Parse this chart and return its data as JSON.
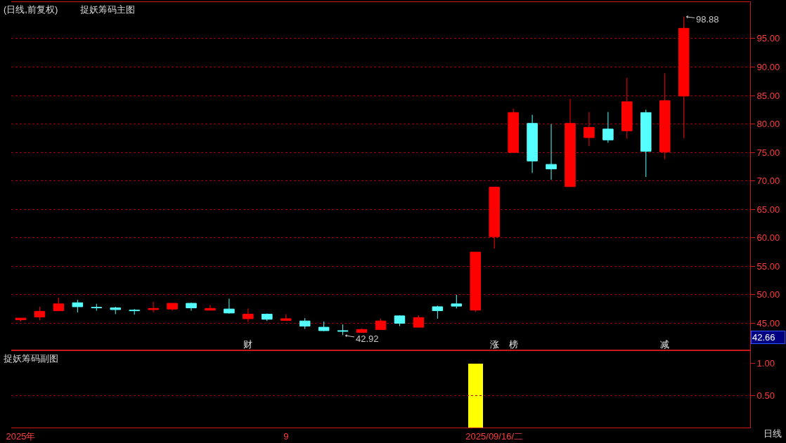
{
  "chart_data": [
    {
      "type": "candlestick",
      "title": "(日线,前复权)",
      "subtitle": "捉妖筹码主图",
      "categories": [
        null,
        null,
        null,
        null,
        null,
        null,
        null,
        null,
        null,
        null,
        null,
        null,
        "财",
        null,
        null,
        null,
        null,
        null,
        null,
        null,
        null,
        null,
        null,
        null,
        null,
        "涨",
        "榜",
        null,
        null,
        null,
        null,
        null,
        null,
        null,
        "减",
        null,
        null,
        null,
        null
      ],
      "ohlc": [
        [
          45.6,
          45.9,
          45.3,
          45.9
        ],
        [
          46.1,
          47.9,
          45.5,
          47.1
        ],
        [
          47.2,
          49.5,
          47.1,
          48.4
        ],
        [
          48.6,
          49.1,
          46.9,
          47.9
        ],
        [
          47.8,
          48.4,
          47.2,
          47.7
        ],
        [
          47.7,
          47.9,
          46.6,
          47.4
        ],
        [
          47.3,
          47.5,
          46.5,
          47.2
        ],
        [
          47.4,
          48.8,
          46.9,
          47.6
        ],
        [
          47.5,
          48.5,
          47.2,
          48.5
        ],
        [
          48.5,
          48.6,
          47.2,
          47.7
        ],
        [
          47.3,
          48.2,
          47.3,
          47.6
        ],
        [
          47.5,
          49.3,
          46.7,
          46.8
        ],
        [
          45.8,
          47.6,
          45.2,
          46.6
        ],
        [
          46.6,
          46.7,
          45.4,
          45.7
        ],
        [
          45.5,
          46.6,
          45.5,
          45.8
        ],
        [
          45.4,
          45.9,
          44.0,
          44.5
        ],
        [
          44.3,
          45.3,
          43.6,
          43.7
        ],
        [
          43.7,
          44.8,
          42.92,
          43.6
        ],
        [
          43.4,
          44.1,
          43.3,
          43.9
        ],
        [
          43.9,
          45.8,
          43.9,
          45.4
        ],
        [
          46.3,
          46.4,
          44.5,
          45.0
        ],
        [
          44.3,
          46.4,
          44.3,
          46.0
        ],
        [
          47.9,
          48.1,
          45.8,
          47.2
        ],
        [
          48.4,
          50.0,
          47.6,
          48.0
        ],
        [
          47.3,
          57.5,
          47.0,
          57.5
        ],
        [
          60.2,
          68.9,
          58.1,
          68.9
        ],
        [
          75.0,
          82.7,
          75.0,
          82.0
        ],
        [
          80.1,
          81.6,
          71.4,
          73.5
        ],
        [
          72.9,
          80.0,
          70.2,
          72.1
        ],
        [
          69.0,
          84.4,
          69.0,
          80.1
        ],
        [
          77.6,
          82.1,
          76.1,
          79.4
        ],
        [
          79.1,
          82.1,
          76.7,
          77.2
        ],
        [
          78.8,
          88.1,
          77.4,
          83.9
        ],
        [
          82.0,
          82.5,
          70.7,
          75.2
        ],
        [
          75.1,
          88.9,
          73.8,
          84.1
        ],
        [
          84.9,
          98.88,
          77.5,
          96.8
        ],
        null,
        null,
        null
      ],
      "colors": [
        "#ff0000",
        "#ff0000",
        "#ff0000",
        "#55ffff",
        "#55ffff",
        "#55ffff",
        "#55ffff",
        "#ff0000",
        "#ff0000",
        "#55ffff",
        "#ff0000",
        "#55ffff",
        "#ff0000",
        "#55ffff",
        "#ff0000",
        "#55ffff",
        "#55ffff",
        "#55ffff",
        "#ff0000",
        "#ff0000",
        "#55ffff",
        "#ff0000",
        "#55ffff",
        "#55ffff",
        "#ff0000",
        "#ff0000",
        "#ff0000",
        "#55ffff",
        "#55ffff",
        "#ff0000",
        "#ff0000",
        "#55ffff",
        "#ff0000",
        "#55ffff",
        "#ff0000",
        "#ff0000",
        null,
        null,
        null
      ],
      "ylim": [
        40.4,
        101.4
      ],
      "yticks": [
        {
          "value": 45,
          "label": "45.00"
        },
        {
          "value": 50,
          "label": "50.00"
        },
        {
          "value": 55,
          "label": "55.00"
        },
        {
          "value": 60,
          "label": "60.00"
        },
        {
          "value": 65,
          "label": "65.00"
        },
        {
          "value": 70,
          "label": "70.00"
        },
        {
          "value": 75,
          "label": "75.00"
        },
        {
          "value": 80,
          "label": "80.00"
        },
        {
          "value": 85,
          "label": "85.00"
        },
        {
          "value": 90,
          "label": "90.00"
        },
        {
          "value": 95,
          "label": "95.00"
        }
      ],
      "grid": "y",
      "annotations": [
        "98.88",
        "42.92",
        "42.66"
      ]
    },
    {
      "type": "bar",
      "title": "捉妖筹码副图",
      "categories": [
        "2025年",
        null,
        null,
        null,
        null,
        null,
        null,
        null,
        null,
        null,
        null,
        null,
        null,
        null,
        "9",
        null,
        null,
        null,
        null,
        null,
        null,
        null,
        null,
        null,
        null,
        "2025/09/16/二",
        null,
        null,
        null,
        null,
        null,
        null,
        null,
        null,
        null,
        null,
        null,
        null,
        null
      ],
      "values": [
        null,
        null,
        null,
        null,
        null,
        null,
        null,
        null,
        null,
        null,
        null,
        null,
        null,
        null,
        null,
        null,
        null,
        null,
        null,
        null,
        null,
        null,
        null,
        null,
        1,
        null,
        null,
        null,
        null,
        null,
        null,
        null,
        null,
        null,
        null,
        null,
        null,
        null,
        null
      ],
      "color": "#ffff00",
      "ylim": [
        0,
        1.2
      ],
      "yticks": [
        {
          "value": 0.5,
          "label": "0.50"
        },
        {
          "value": 1,
          "label": "1.00"
        }
      ],
      "ref_lines": [
        {
          "axis": "y",
          "value": 0.5,
          "color": "#a80000",
          "line_style": "dotted"
        }
      ],
      "annotations": [
        "日线"
      ]
    }
  ]
}
